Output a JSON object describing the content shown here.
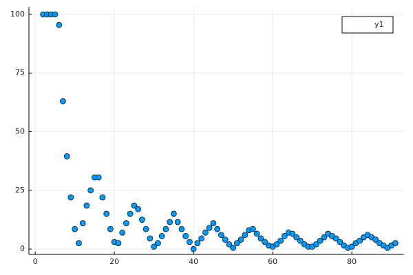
{
  "chart_data": {
    "type": "scatter",
    "x": [
      2,
      3,
      4,
      5,
      6,
      7,
      8,
      9,
      10,
      11,
      12,
      13,
      14,
      15,
      16,
      17,
      18,
      19,
      20,
      21,
      22,
      23,
      24,
      25,
      26,
      27,
      28,
      29,
      30,
      31,
      32,
      33,
      34,
      35,
      36,
      37,
      38,
      39,
      40,
      41,
      42,
      43,
      44,
      45,
      46,
      47,
      48,
      49,
      50,
      51,
      52,
      53,
      54,
      55,
      56,
      57,
      58,
      59,
      60,
      61,
      62,
      63,
      64,
      65,
      66,
      67,
      68,
      69,
      70,
      71,
      72,
      73,
      74,
      75,
      76,
      77,
      78,
      79,
      80,
      81,
      82,
      83,
      84,
      85,
      86,
      87,
      88,
      89,
      90,
      91
    ],
    "series": [
      {
        "name": "y1",
        "color": "#009af9",
        "values": [
          100,
          100,
          100,
          100,
          95.5,
          63,
          39.5,
          22,
          8.5,
          2.5,
          11,
          18.5,
          25,
          30.5,
          30.5,
          22,
          15,
          8.5,
          3,
          2.5,
          7,
          11,
          15,
          18.5,
          17,
          12.5,
          8.5,
          4.5,
          1,
          2.5,
          5.5,
          8.5,
          11.5,
          15,
          11.5,
          8.5,
          5.5,
          3,
          0,
          2.5,
          4.5,
          7,
          9,
          11,
          8.5,
          6,
          4,
          2,
          0.5,
          2.5,
          4,
          6,
          8,
          8.5,
          6.5,
          4.5,
          3,
          1.5,
          1,
          2,
          3.5,
          5.5,
          7,
          6.5,
          5,
          3.5,
          2,
          1,
          1,
          2,
          3.5,
          5,
          6.5,
          5.5,
          4.5,
          3,
          1.5,
          0.5,
          1,
          2.5,
          3.5,
          5,
          6,
          5,
          4,
          2.5,
          1.5,
          0.5,
          1.5,
          2.5
        ]
      }
    ],
    "xlim": [
      -1.6,
      93.2
    ],
    "ylim": [
      -2.3,
      103.2
    ],
    "xticks": [
      0,
      20,
      40,
      60,
      80
    ],
    "yticks": [
      0,
      25,
      50,
      75,
      100
    ],
    "grid": true,
    "legend": "top-right"
  }
}
